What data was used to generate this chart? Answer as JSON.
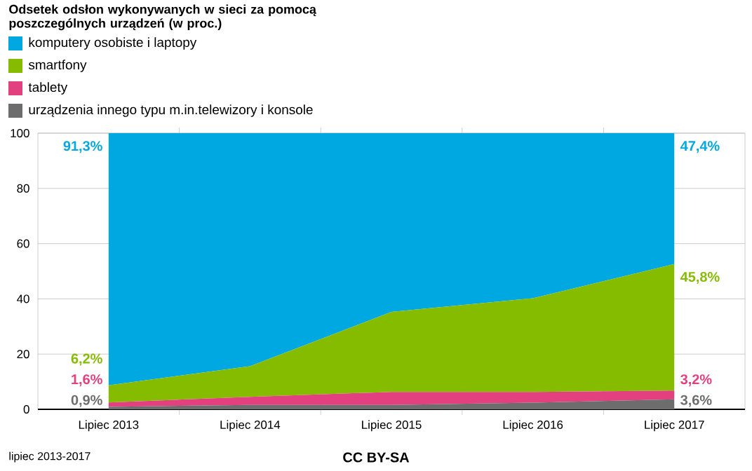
{
  "chart_data": {
    "type": "area",
    "stacked": true,
    "title": "Odsetek odsłon wykonywanych w sieci za pomocą poszczególnych urządzeń (w proc.)",
    "categories": [
      "Lipiec 2013",
      "Lipiec 2014",
      "Lipiec 2015",
      "Lipiec 2016",
      "Lipiec 2017"
    ],
    "series": [
      {
        "name": "urządzenia innego typu m.in.telewizory i konsole",
        "color": "#6d6d6d",
        "values": [
          0.9,
          1.6,
          1.6,
          2.4,
          3.6
        ],
        "value_labels": [
          "0,9%",
          null,
          null,
          null,
          "3,6%"
        ]
      },
      {
        "name": "tablety",
        "color": "#e2407e",
        "values": [
          1.6,
          2.9,
          4.7,
          3.9,
          3.2
        ],
        "value_labels": [
          "1,6%",
          null,
          null,
          null,
          "3,2%"
        ]
      },
      {
        "name": "smartfony",
        "color": "#86bc00",
        "values": [
          6.2,
          11.1,
          29,
          33.9,
          45.8
        ],
        "value_labels": [
          "6,2%",
          null,
          null,
          null,
          "45,8%"
        ]
      },
      {
        "name": "komputery osobiste i laptopy",
        "color": "#00a8e1",
        "values": [
          91.3,
          84.4,
          64.7,
          59.8,
          47.4
        ],
        "value_labels": [
          "91,3%",
          null,
          null,
          null,
          "47,4%"
        ]
      }
    ],
    "ylim": [
      0,
      100
    ],
    "yticks": [
      0,
      20,
      40,
      60,
      80,
      100
    ],
    "grid": true,
    "legend": "top",
    "annotations": [
      "lipiec 2013-2017",
      "CC BY-SA"
    ]
  }
}
